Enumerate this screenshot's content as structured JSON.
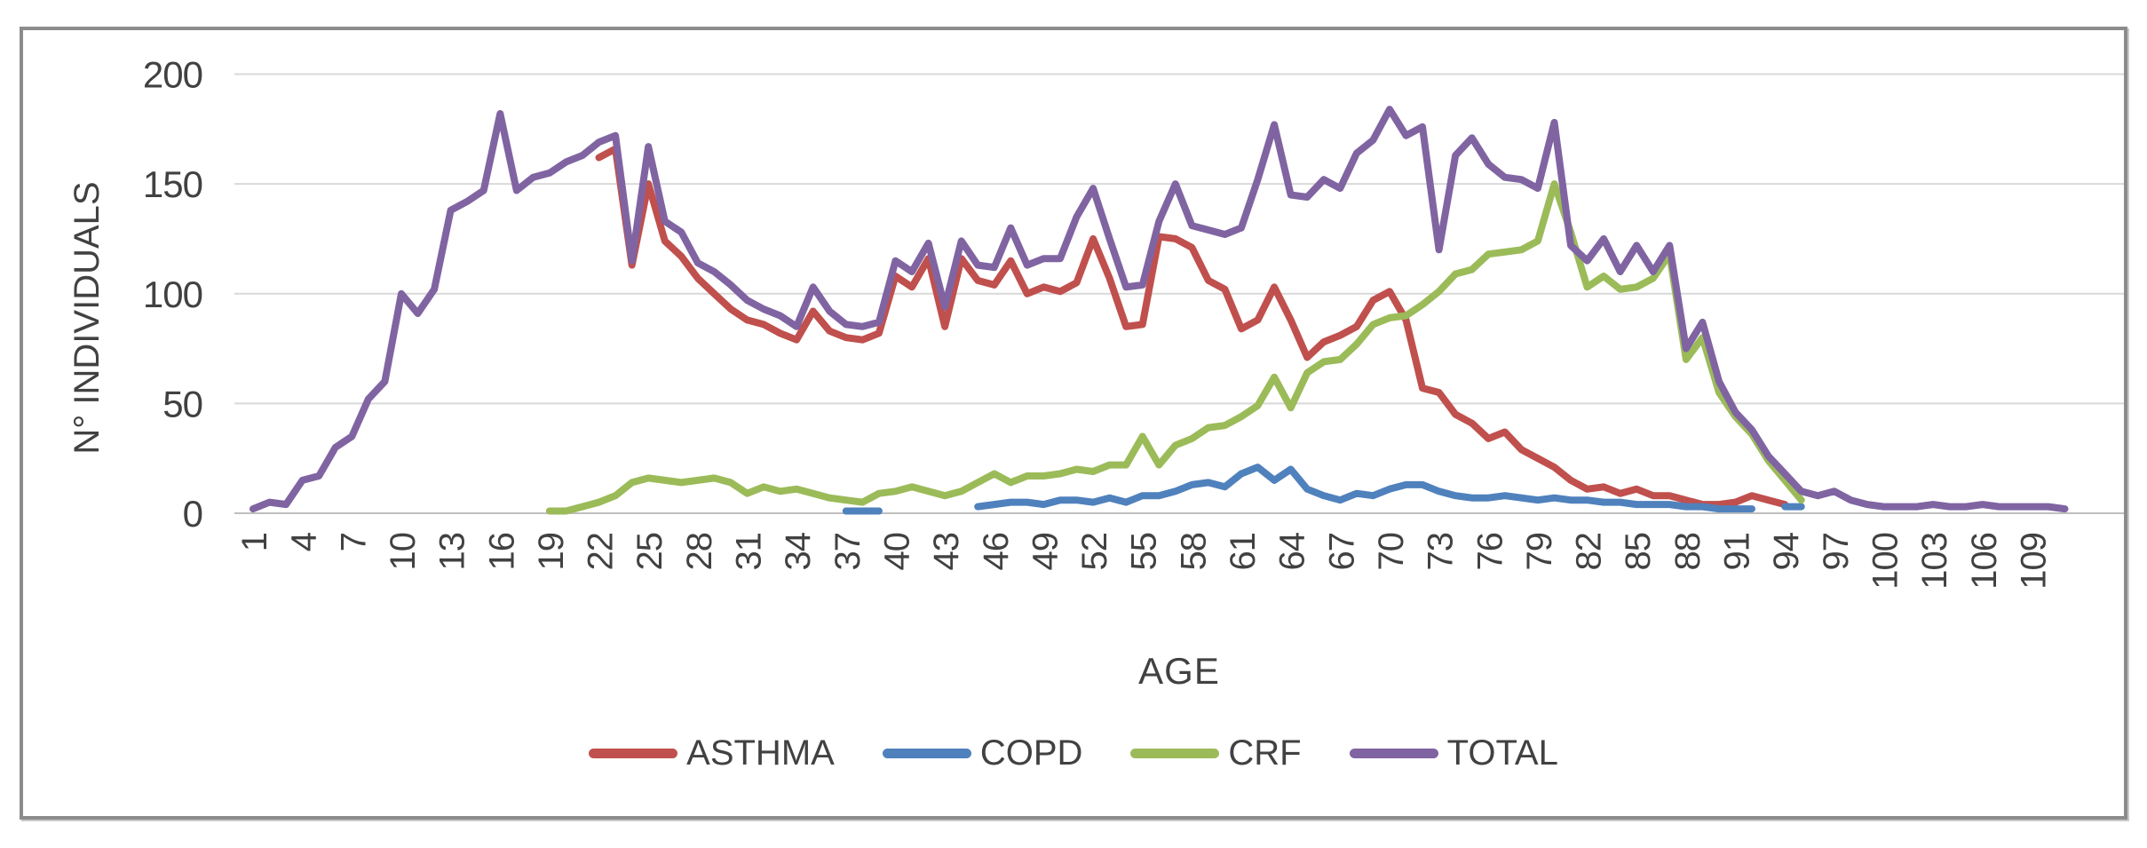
{
  "window": {
    "background": "#ffffff",
    "border_color": "#8c8c8c"
  },
  "chart_data": {
    "type": "line",
    "title": "",
    "xlabel": "AGE",
    "ylabel": "N° INDIVIDUALS",
    "ylim": [
      0,
      200
    ],
    "yticks": [
      0,
      50,
      100,
      150,
      200
    ],
    "ytick_labels": [
      "0",
      "50",
      "100",
      "150",
      "200"
    ],
    "x_start": 1,
    "x_end": 111,
    "xtick_labels": [
      "1",
      "4",
      "7",
      "10",
      "13",
      "16",
      "19",
      "22",
      "25",
      "28",
      "31",
      "34",
      "37",
      "40",
      "43",
      "46",
      "49",
      "52",
      "55",
      "58",
      "61",
      "64",
      "67",
      "70",
      "73",
      "76",
      "79",
      "82",
      "85",
      "88",
      "91",
      "94",
      "97",
      "100",
      "103",
      "106",
      "109"
    ],
    "xtick_step": 3,
    "grid": true,
    "gridline_color": "#d9d9d9",
    "axis_line_color": "#bfbfbf",
    "text_color": "#414141",
    "legend_position": "bottom",
    "series": [
      {
        "name": "ASTHMA",
        "color": "#C0504D",
        "values": [
          null,
          null,
          null,
          null,
          null,
          null,
          null,
          null,
          null,
          null,
          null,
          null,
          null,
          null,
          null,
          null,
          null,
          null,
          null,
          null,
          null,
          162,
          166,
          113,
          150,
          124,
          117,
          107,
          100,
          93,
          88,
          86,
          82,
          79,
          92,
          83,
          80,
          79,
          82,
          108,
          103,
          116,
          85,
          116,
          106,
          104,
          115,
          100,
          103,
          101,
          105,
          125,
          107,
          85,
          86,
          126,
          125,
          121,
          106,
          102,
          84,
          88,
          103,
          88,
          71,
          78,
          81,
          85,
          97,
          101,
          88,
          57,
          55,
          45,
          41,
          34,
          37,
          29,
          25,
          21,
          15,
          11,
          12,
          9,
          11,
          8,
          8,
          6,
          4,
          4,
          5,
          8,
          6,
          4,
          null,
          null,
          null,
          null,
          null,
          null,
          null,
          null,
          null,
          null,
          null,
          null,
          null,
          null,
          null,
          null,
          null
        ]
      },
      {
        "name": "COPD",
        "color": "#4F81BD",
        "values": [
          null,
          null,
          null,
          null,
          null,
          null,
          null,
          null,
          null,
          null,
          null,
          null,
          null,
          null,
          null,
          null,
          null,
          null,
          null,
          null,
          null,
          null,
          null,
          null,
          null,
          null,
          null,
          null,
          null,
          null,
          null,
          null,
          null,
          null,
          null,
          null,
          1,
          1,
          1,
          null,
          null,
          null,
          null,
          null,
          3,
          4,
          5,
          5,
          4,
          6,
          6,
          5,
          7,
          5,
          8,
          8,
          10,
          13,
          14,
          12,
          18,
          21,
          15,
          20,
          11,
          8,
          6,
          9,
          8,
          11,
          13,
          13,
          10,
          8,
          7,
          7,
          8,
          7,
          6,
          7,
          6,
          6,
          5,
          5,
          4,
          4,
          4,
          3,
          3,
          2,
          2,
          2,
          null,
          3,
          3,
          null,
          null,
          null,
          null,
          null,
          null,
          null,
          null,
          null,
          null,
          null,
          null,
          null,
          null,
          null,
          null
        ]
      },
      {
        "name": "CRF",
        "color": "#9BBB59",
        "values": [
          null,
          null,
          null,
          null,
          null,
          null,
          null,
          null,
          null,
          null,
          null,
          null,
          null,
          null,
          null,
          null,
          null,
          null,
          1,
          1,
          3,
          5,
          8,
          14,
          16,
          15,
          14,
          15,
          16,
          14,
          9,
          12,
          10,
          11,
          9,
          7,
          6,
          5,
          9,
          10,
          12,
          10,
          8,
          10,
          14,
          18,
          14,
          17,
          17,
          18,
          20,
          19,
          22,
          22,
          35,
          22,
          31,
          34,
          39,
          40,
          44,
          49,
          62,
          48,
          64,
          69,
          70,
          77,
          86,
          89,
          90,
          95,
          101,
          109,
          111,
          118,
          119,
          120,
          124,
          150,
          128,
          103,
          108,
          102,
          103,
          107,
          118,
          70,
          80,
          55,
          44,
          36,
          24,
          15,
          6,
          null,
          null,
          null,
          null,
          null,
          null,
          null,
          null,
          null,
          null,
          null,
          null,
          null,
          null,
          null,
          null
        ]
      },
      {
        "name": "TOTAL",
        "color": "#8064A2",
        "values": [
          2,
          5,
          4,
          15,
          17,
          30,
          35,
          52,
          60,
          100,
          91,
          102,
          138,
          142,
          147,
          182,
          147,
          153,
          155,
          160,
          163,
          169,
          172,
          115,
          167,
          133,
          128,
          114,
          110,
          104,
          97,
          93,
          90,
          85,
          103,
          92,
          86,
          85,
          87,
          115,
          110,
          123,
          94,
          124,
          113,
          112,
          130,
          113,
          116,
          116,
          135,
          148,
          125,
          103,
          104,
          133,
          150,
          131,
          129,
          127,
          130,
          152,
          177,
          145,
          144,
          152,
          148,
          164,
          170,
          184,
          172,
          176,
          120,
          163,
          171,
          159,
          153,
          152,
          148,
          178,
          122,
          115,
          125,
          110,
          122,
          110,
          122,
          75,
          87,
          60,
          46,
          38,
          26,
          18,
          10,
          8,
          10,
          6,
          4,
          3,
          3,
          3,
          4,
          3,
          3,
          4,
          3,
          3,
          3,
          3,
          2
        ]
      }
    ]
  },
  "legend": {
    "items": [
      {
        "label": "ASTHMA",
        "color": "#C0504D"
      },
      {
        "label": "COPD",
        "color": "#4F81BD"
      },
      {
        "label": "CRF",
        "color": "#9BBB59"
      },
      {
        "label": "TOTAL",
        "color": "#8064A2"
      }
    ]
  }
}
